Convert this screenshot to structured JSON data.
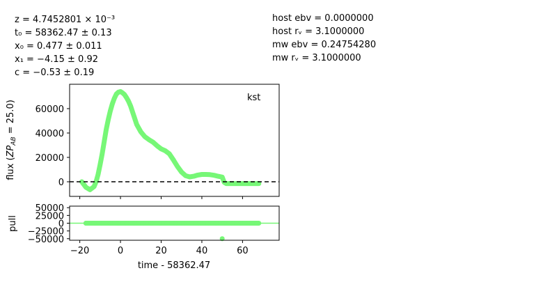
{
  "fit_params": {
    "z": "z = 4.7452801 × 10⁻³",
    "t0": "t₀ = 58362.47 ± 0.13",
    "x0": "x₀ = 0.477 ± 0.011",
    "x1": "x₁ = −4.15 ± 0.92",
    "c": "c = −0.53 ± 0.19"
  },
  "extinction": {
    "host_ebv": "host ebv = 0.0000000",
    "host_rv": "host rᵥ = 3.1000000",
    "mw_ebv": "mw ebv = 0.24754280",
    "mw_rv": "mw rᵥ = 3.1000000"
  },
  "colors": {
    "model": "#77f777",
    "zero_line": "#000000",
    "axes": "#000000"
  },
  "chart_data": [
    {
      "type": "line",
      "panel": "flux",
      "band_label": "kst",
      "xlabel": "",
      "ylabel": "flux (ZP_AB = 25.0)",
      "xlim": [
        -25,
        78
      ],
      "ylim": [
        -12000,
        80000
      ],
      "yticks": [
        0,
        20000,
        40000,
        60000
      ],
      "ytick_labels": [
        "0",
        "20000",
        "40000",
        "60000"
      ],
      "xticks": [
        -20,
        0,
        20,
        40,
        60
      ],
      "zero_line": 0,
      "series": [
        {
          "name": "model",
          "x": [
            -19,
            -17,
            -15,
            -13,
            -12,
            -11,
            -10,
            -9,
            -8,
            -7,
            -6,
            -5,
            -4,
            -3,
            -2,
            -1,
            0,
            1,
            2,
            3,
            4,
            5,
            6,
            7,
            8,
            10,
            12,
            14,
            16,
            18,
            20,
            22,
            24,
            26,
            28,
            30,
            32,
            34,
            36,
            38,
            40,
            42,
            44,
            46,
            48,
            50,
            51,
            52,
            56,
            60,
            64,
            68
          ],
          "y": [
            0,
            -4500,
            -6500,
            -4000,
            0,
            6000,
            14000,
            23000,
            33000,
            43000,
            51000,
            58000,
            64000,
            68500,
            72000,
            73500,
            74000,
            73000,
            71500,
            69000,
            66000,
            62000,
            57000,
            52000,
            47000,
            41000,
            37000,
            34500,
            32500,
            29500,
            27000,
            25500,
            23000,
            18000,
            12500,
            8000,
            5000,
            4000,
            4500,
            5500,
            6000,
            6000,
            5800,
            5300,
            4500,
            3800,
            -500,
            -1500,
            -1500,
            -1500,
            -1500,
            -1500
          ]
        }
      ]
    },
    {
      "type": "scatter",
      "panel": "pull",
      "xlabel": "time - 58362.47",
      "ylabel": "pull",
      "xlim": [
        -25,
        78
      ],
      "ylim": [
        -55000,
        55000
      ],
      "yticks": [
        -50000,
        -25000,
        0,
        25000,
        50000
      ],
      "ytick_labels": [
        "−50000",
        "−25000",
        "0",
        "25000",
        "50000"
      ],
      "xticks": [
        -20,
        0,
        20,
        40,
        60
      ],
      "xtick_labels": [
        "−20",
        "0",
        "20",
        "40",
        "60"
      ],
      "series": [
        {
          "name": "pull",
          "band_start": -17,
          "band_end": 68,
          "value": 0,
          "outlier": {
            "x": 50,
            "y": -50000
          }
        }
      ]
    }
  ]
}
